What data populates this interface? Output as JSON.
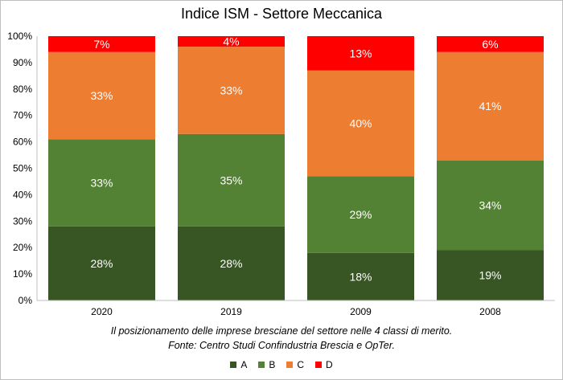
{
  "chart_data": {
    "type": "bar",
    "stacked": true,
    "title": "Indice ISM - Settore Meccanica",
    "categories": [
      "2020",
      "2019",
      "2009",
      "2008"
    ],
    "series": [
      {
        "name": "A",
        "color": "#375623",
        "values": [
          28,
          28,
          18,
          19
        ]
      },
      {
        "name": "B",
        "color": "#548235",
        "values": [
          33,
          35,
          29,
          34
        ]
      },
      {
        "name": "C",
        "color": "#ED7D31",
        "values": [
          33,
          33,
          40,
          41
        ]
      },
      {
        "name": "D",
        "color": "#FF0000",
        "values": [
          7,
          4,
          13,
          6
        ]
      }
    ],
    "ylim": [
      0,
      100
    ],
    "yticks": [
      "0%",
      "10%",
      "20%",
      "30%",
      "40%",
      "50%",
      "60%",
      "70%",
      "80%",
      "90%",
      "100%"
    ],
    "value_suffix": "%",
    "grid": false,
    "legend_position": "bottom"
  },
  "caption": {
    "line1": "Il posizionamento delle imprese bresciane del settore nelle 4 classi di merito.",
    "line2": "Fonte: Centro Studi Confindustria Brescia e OpTer."
  }
}
